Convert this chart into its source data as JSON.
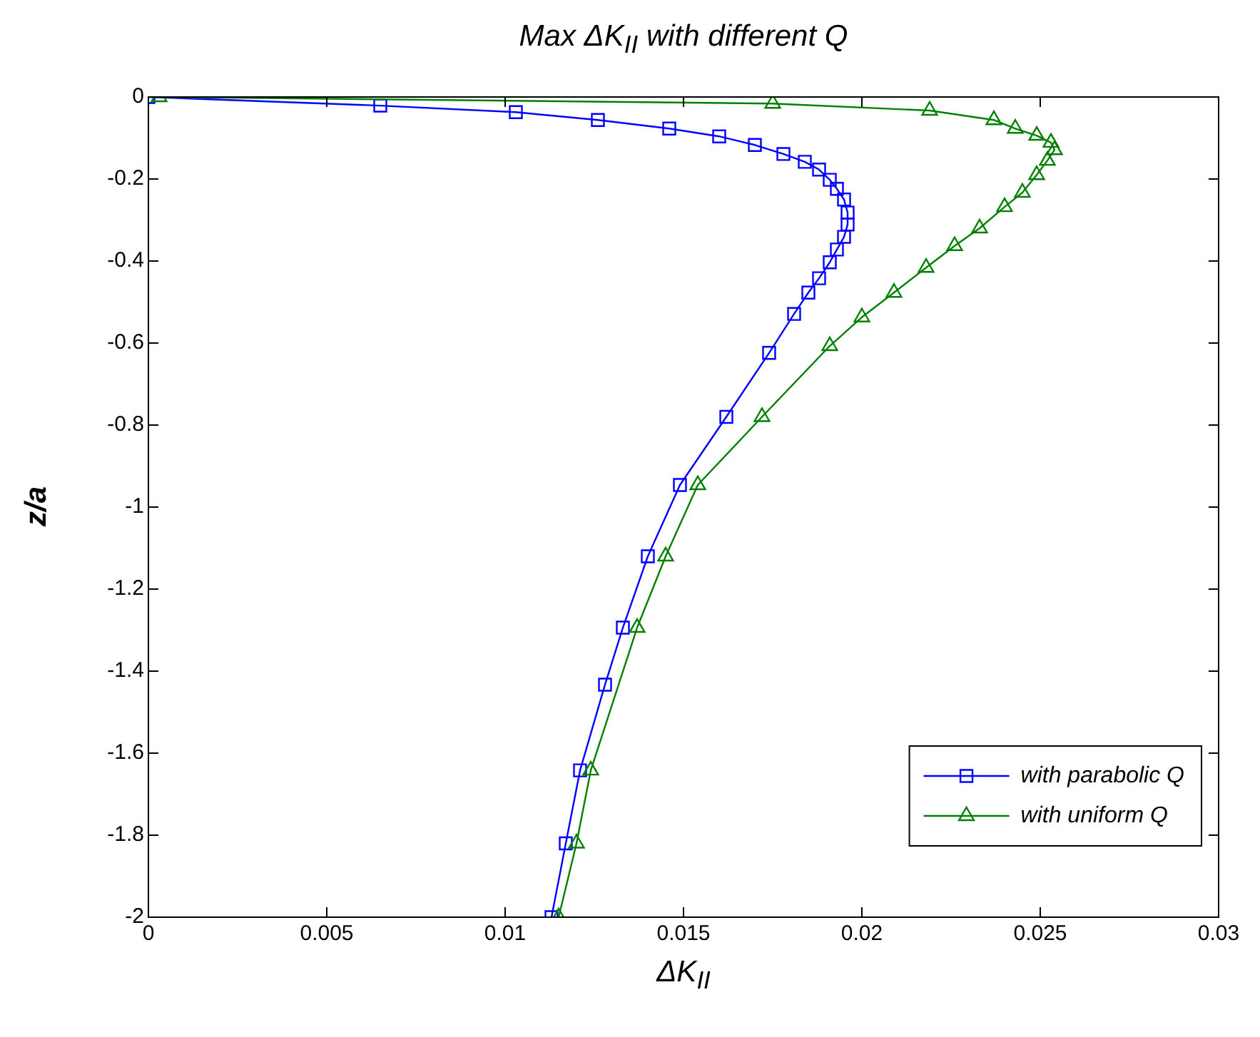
{
  "chart_data": {
    "type": "line",
    "title": "Max ΔK$_{II}$ with different Q",
    "xlabel": "ΔK$_{II}$",
    "ylabel": "z/a",
    "xlim": [
      0,
      0.03
    ],
    "xticks": [
      0,
      0.005,
      0.01,
      0.015,
      0.02,
      0.025,
      0.03
    ],
    "ylim": [
      -2,
      0
    ],
    "yticks": [
      -2,
      -1.8,
      -1.6,
      -1.4,
      -1.2,
      -1,
      -0.8,
      -0.6,
      -0.4,
      -0.2,
      0
    ],
    "grid": false,
    "legend": "bottom right",
    "line_style": "solid",
    "series": [
      {
        "name": "with parabolic Q",
        "color": "#0000ff",
        "marker": "square",
        "x": [
          0,
          0.0065,
          0.0103,
          0.0126,
          0.0146,
          0.016,
          0.017,
          0.0178,
          0.0184,
          0.0188,
          0.0191,
          0.0193,
          0.0195,
          0.0196,
          0.0196,
          0.0195,
          0.0193,
          0.0191,
          0.0188,
          0.0185,
          0.0181,
          0.0174,
          0.0162,
          0.0149,
          0.014,
          0.0133,
          0.0128,
          0.0121,
          0.0117,
          0.0113
        ],
        "values": [
          0,
          -0.021,
          -0.037,
          -0.056,
          -0.077,
          -0.096,
          -0.117,
          -0.139,
          -0.158,
          -0.177,
          -0.202,
          -0.224,
          -0.25,
          -0.282,
          -0.311,
          -0.341,
          -0.372,
          -0.403,
          -0.442,
          -0.477,
          -0.529,
          -0.624,
          -0.78,
          -0.946,
          -1.12,
          -1.294,
          -1.433,
          -1.642,
          -1.82,
          -2
        ]
      },
      {
        "name": "with uniform Q",
        "color": "#008000",
        "marker": "triangle",
        "x": [
          0.0003,
          0.0175,
          0.0219,
          0.0237,
          0.0243,
          0.0249,
          0.0253,
          0.0254,
          0.0252,
          0.0249,
          0.0245,
          0.024,
          0.0233,
          0.0226,
          0.0218,
          0.0209,
          0.02,
          0.0191,
          0.0172,
          0.0154,
          0.0145,
          0.0137,
          0.0124,
          0.012,
          0.0115
        ],
        "values": [
          0,
          -0.016,
          -0.033,
          -0.056,
          -0.077,
          -0.094,
          -0.111,
          -0.129,
          -0.155,
          -0.19,
          -0.233,
          -0.268,
          -0.32,
          -0.363,
          -0.416,
          -0.477,
          -0.537,
          -0.607,
          -0.78,
          -0.946,
          -1.12,
          -1.294,
          -1.642,
          -1.82,
          -2
        ]
      }
    ]
  }
}
